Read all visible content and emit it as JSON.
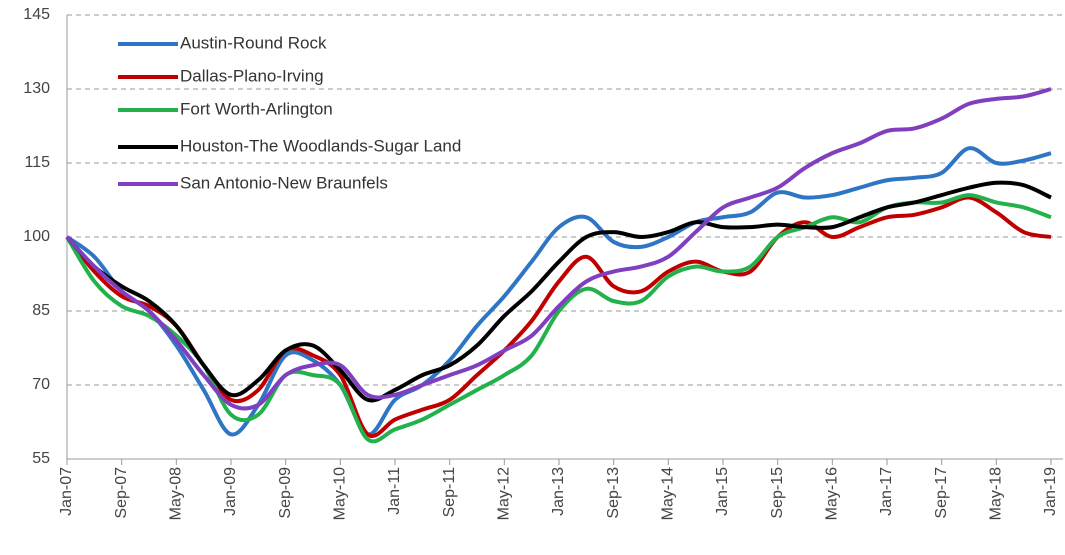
{
  "chart_data": {
    "type": "line",
    "categories": [
      "Jan-07",
      null,
      "Sep-07",
      null,
      "May-08",
      null,
      "Jan-09",
      null,
      "Sep-09",
      null,
      "May-10",
      null,
      "Jan-11",
      null,
      "Sep-11",
      null,
      "May-12",
      null,
      "Jan-13",
      null,
      "Sep-13",
      null,
      "May-14",
      null,
      "Jan-15",
      null,
      "Sep-15",
      null,
      "May-16",
      null,
      "Jan-17",
      null,
      "Sep-17",
      null,
      "May-18",
      null,
      "Jan-19"
    ],
    "series": [
      {
        "name": "Austin-Round Rock",
        "color": "#2e75c6",
        "values": [
          100,
          96,
          89,
          85,
          78,
          69,
          60,
          66,
          76,
          75,
          70,
          60,
          67,
          70,
          75,
          82,
          88,
          95,
          102,
          104,
          99,
          98,
          100,
          103,
          104,
          105,
          109,
          108,
          108.5,
          110,
          111.5,
          112,
          113,
          118,
          115,
          115.5,
          117
        ]
      },
      {
        "name": "Dallas-Plano-Irving",
        "color": "#c00000",
        "values": [
          100,
          93,
          88,
          86,
          82,
          74,
          67,
          69,
          77,
          76,
          72,
          60,
          63,
          65,
          67,
          72,
          77,
          83,
          91,
          96,
          90,
          89,
          93,
          95,
          93,
          93,
          100,
          103,
          100,
          102,
          104,
          104.5,
          106,
          108,
          105,
          101,
          100
        ]
      },
      {
        "name": "Fort Worth-Arlington",
        "color": "#22b14c",
        "values": [
          100,
          91,
          86,
          84,
          80,
          74,
          64,
          64,
          72,
          72,
          70,
          59,
          61,
          63,
          66,
          69,
          72,
          76,
          85,
          89.5,
          87,
          87,
          92,
          94,
          93,
          94,
          100,
          102,
          104,
          103,
          106,
          107,
          107,
          108.5,
          107,
          106,
          104
        ]
      },
      {
        "name": "Houston-The Woodlands-Sugar Land",
        "color": "#000000",
        "values": [
          100,
          94,
          90,
          87,
          82,
          74,
          68,
          71,
          77,
          78,
          73,
          67,
          69,
          72,
          74,
          78,
          84,
          89,
          95,
          100,
          101,
          100,
          101,
          103,
          102,
          102,
          102.5,
          102,
          102,
          104,
          106,
          107,
          108.5,
          110,
          111,
          110.5,
          108
        ]
      },
      {
        "name": "San Antonio-New Braunfels",
        "color": "#7f3fbf",
        "values": [
          100,
          94,
          89,
          85,
          79,
          72,
          66,
          66,
          72,
          74,
          74,
          68,
          68,
          70,
          72,
          74,
          77,
          80,
          86,
          91,
          93,
          94,
          96,
          101,
          106,
          108,
          110,
          114,
          117,
          119,
          121.5,
          122,
          124,
          127,
          128,
          128.5,
          130
        ]
      }
    ],
    "ylim": [
      55,
      145
    ],
    "yticks": [
      55,
      70,
      85,
      100,
      115,
      130,
      145
    ],
    "grid": true,
    "legend": "top-left"
  }
}
